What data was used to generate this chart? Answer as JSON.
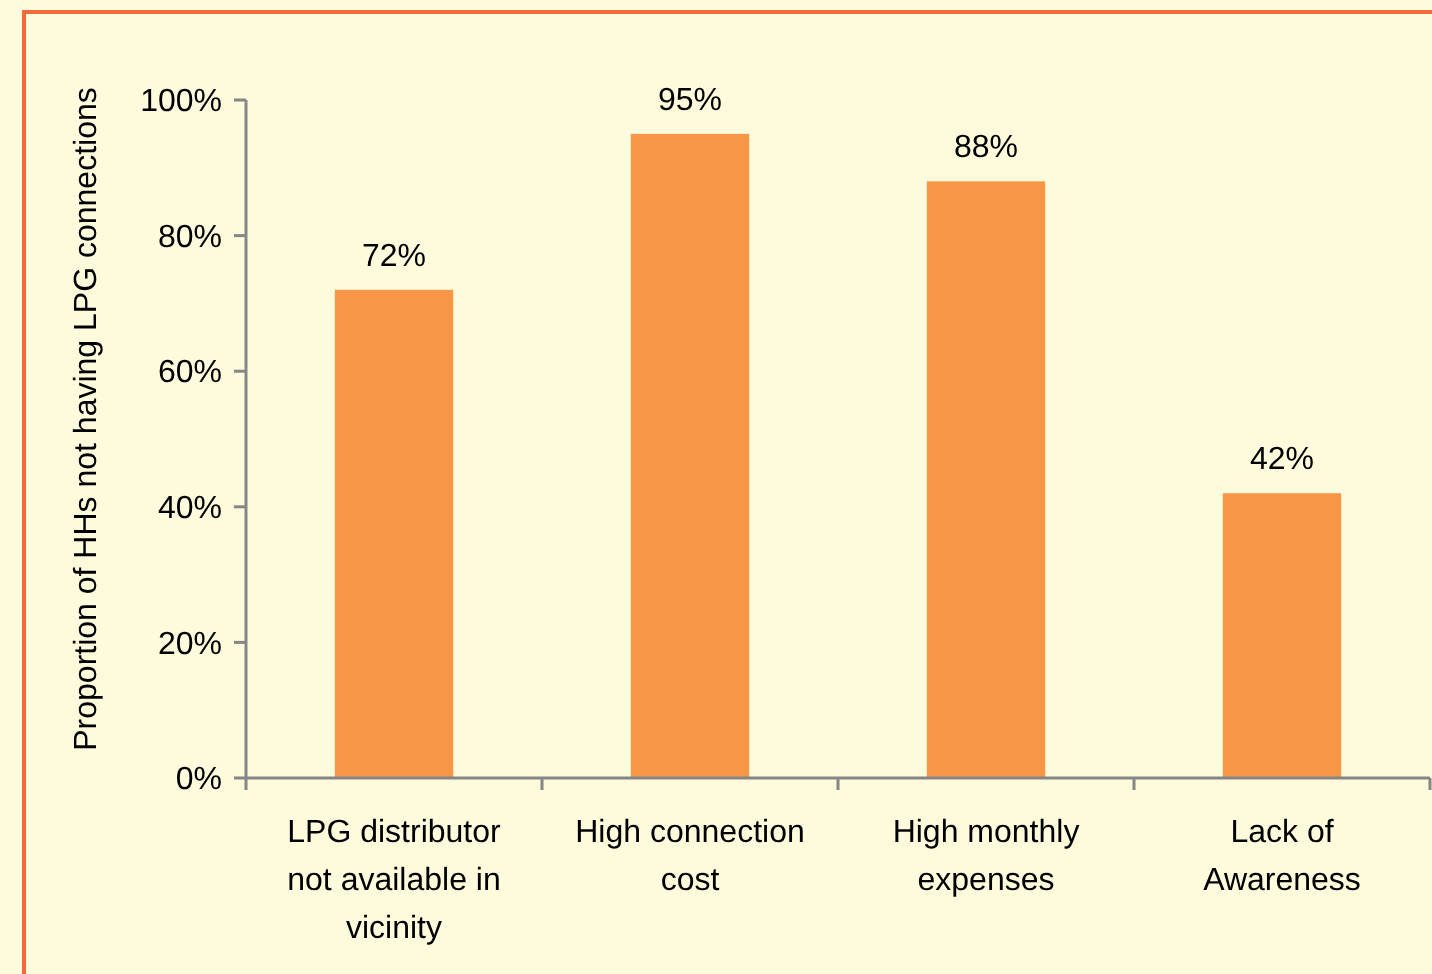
{
  "chart_data": {
    "type": "bar",
    "ylabel": "Proportion of HHs not having LPG connections",
    "categories": [
      "LPG distributor not available in vicinity",
      "High connection cost",
      "High monthly expenses",
      "Lack of Awareness"
    ],
    "values": [
      72,
      95,
      88,
      42
    ],
    "value_labels": [
      "72%",
      "95%",
      "88%",
      "42%"
    ],
    "color": "#f79646",
    "ylim": [
      0,
      100
    ],
    "yticks": [
      {
        "value": 0,
        "label": "0%"
      },
      {
        "value": 20,
        "label": "20%"
      },
      {
        "value": 40,
        "label": "40%"
      },
      {
        "value": 60,
        "label": "60%"
      },
      {
        "value": 80,
        "label": "80%"
      },
      {
        "value": 100,
        "label": "100%"
      }
    ],
    "grid": false
  }
}
